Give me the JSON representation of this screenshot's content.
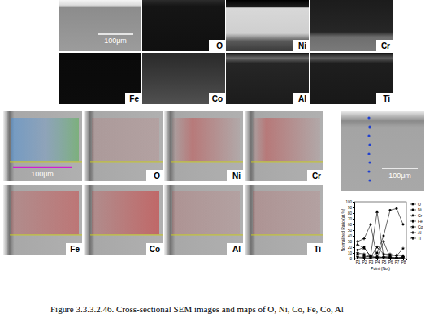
{
  "top_maps": {
    "scale_bar": "100μm",
    "labels": [
      "O",
      "Ni",
      "Cr",
      "Fe",
      "Co",
      "Al",
      "Ti"
    ]
  },
  "bottom_maps": {
    "scale_bar": "100μm",
    "labels": [
      "O",
      "Ni",
      "Cr",
      "Fe",
      "Co",
      "Al",
      "Ti"
    ]
  },
  "point_image": {
    "scale_bar": "100μm"
  },
  "chart_data": {
    "type": "line",
    "x_label": "Point (No.)",
    "y_label": "Normalized Ratio (at.%)",
    "categories": [
      "P1",
      "P2",
      "P3",
      "P4",
      "P5",
      "P6",
      "P7",
      "P8"
    ],
    "series": [
      {
        "name": "O",
        "color": "#000000",
        "marker": "square",
        "values": [
          8,
          5,
          2,
          3,
          2,
          3,
          1,
          2
        ]
      },
      {
        "name": "Ni",
        "color": "#000000",
        "marker": "circle",
        "values": [
          15,
          20,
          3,
          10,
          40,
          85,
          88,
          60
        ]
      },
      {
        "name": "Cr",
        "color": "#000000",
        "marker": "triangle",
        "values": [
          25,
          18,
          5,
          82,
          3,
          5,
          6,
          5
        ]
      },
      {
        "name": "Fe",
        "color": "#000000",
        "marker": "diamond",
        "values": [
          2,
          1,
          1,
          3,
          2,
          1,
          1,
          1
        ]
      },
      {
        "name": "Co",
        "color": "#000000",
        "marker": "star",
        "values": [
          10,
          8,
          3,
          20,
          8,
          8,
          5,
          18
        ]
      },
      {
        "name": "Al",
        "color": "#000000",
        "marker": "cross",
        "values": [
          30,
          35,
          60,
          2,
          30,
          2,
          1,
          3
        ]
      },
      {
        "name": "Ti",
        "color": "#000000",
        "marker": "wye",
        "values": [
          3,
          2,
          5,
          1,
          2,
          1,
          1,
          1
        ]
      }
    ],
    "ylim": [
      0,
      100
    ],
    "yticks": [
      0,
      10,
      20,
      30,
      40,
      50,
      60,
      70,
      80,
      90,
      100
    ],
    "legend": "upper right"
  },
  "caption": "Figure 3.3.3.2.46. Cross-sectional SEM images and maps of O, Ni, Co, Fe, Co, Al"
}
